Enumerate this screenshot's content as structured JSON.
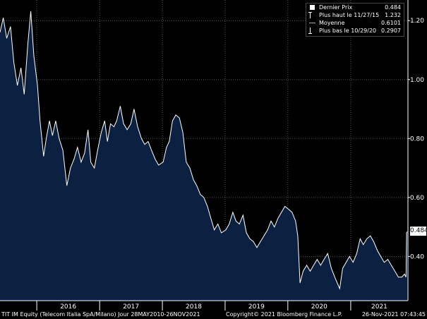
{
  "chart_data": {
    "type": "area",
    "ylim": [
      0.25,
      1.27
    ],
    "y_ticks": [
      0.4,
      0.6,
      0.8,
      1.0,
      1.2
    ],
    "y_tick_labels": [
      "0.40",
      "0.60",
      "0.80",
      "1.00",
      "1.20"
    ],
    "x_labels": [
      "2016",
      "2017",
      "2018",
      "2019",
      "2020",
      "2021"
    ],
    "grid": true,
    "series": [
      {
        "points": [
          [
            "2015-06-01",
            1.16
          ],
          [
            "2015-06-20",
            1.21
          ],
          [
            "2015-07-10",
            1.14
          ],
          [
            "2015-08-01",
            1.18
          ],
          [
            "2015-08-20",
            1.06
          ],
          [
            "2015-09-10",
            0.98
          ],
          [
            "2015-10-01",
            1.04
          ],
          [
            "2015-10-20",
            0.95
          ],
          [
            "2015-11-10",
            1.12
          ],
          [
            "2015-11-27",
            1.232
          ],
          [
            "2015-12-15",
            1.08
          ],
          [
            "2016-01-05",
            0.98
          ],
          [
            "2016-01-20",
            0.86
          ],
          [
            "2016-02-10",
            0.74
          ],
          [
            "2016-02-25",
            0.8
          ],
          [
            "2016-03-15",
            0.86
          ],
          [
            "2016-04-01",
            0.81
          ],
          [
            "2016-04-20",
            0.86
          ],
          [
            "2016-05-10",
            0.8
          ],
          [
            "2016-06-01",
            0.76
          ],
          [
            "2016-06-24",
            0.64
          ],
          [
            "2016-07-15",
            0.7
          ],
          [
            "2016-08-05",
            0.73
          ],
          [
            "2016-08-25",
            0.77
          ],
          [
            "2016-09-15",
            0.72
          ],
          [
            "2016-10-05",
            0.75
          ],
          [
            "2016-10-25",
            0.83
          ],
          [
            "2016-11-10",
            0.72
          ],
          [
            "2016-12-01",
            0.7
          ],
          [
            "2016-12-20",
            0.76
          ],
          [
            "2017-01-10",
            0.82
          ],
          [
            "2017-01-30",
            0.86
          ],
          [
            "2017-02-15",
            0.79
          ],
          [
            "2017-03-05",
            0.85
          ],
          [
            "2017-03-25",
            0.84
          ],
          [
            "2017-04-10",
            0.86
          ],
          [
            "2017-05-01",
            0.91
          ],
          [
            "2017-05-20",
            0.85
          ],
          [
            "2017-06-10",
            0.83
          ],
          [
            "2017-07-01",
            0.85
          ],
          [
            "2017-07-20",
            0.9
          ],
          [
            "2017-08-10",
            0.84
          ],
          [
            "2017-09-01",
            0.8
          ],
          [
            "2017-09-20",
            0.78
          ],
          [
            "2017-10-10",
            0.79
          ],
          [
            "2017-10-30",
            0.76
          ],
          [
            "2017-11-20",
            0.73
          ],
          [
            "2017-12-10",
            0.71
          ],
          [
            "2018-01-05",
            0.72
          ],
          [
            "2018-01-25",
            0.77
          ],
          [
            "2018-02-10",
            0.79
          ],
          [
            "2018-03-01",
            0.86
          ],
          [
            "2018-03-20",
            0.88
          ],
          [
            "2018-04-10",
            0.87
          ],
          [
            "2018-04-30",
            0.82
          ],
          [
            "2018-05-20",
            0.72
          ],
          [
            "2018-06-10",
            0.7
          ],
          [
            "2018-07-01",
            0.66
          ],
          [
            "2018-07-20",
            0.64
          ],
          [
            "2018-08-10",
            0.61
          ],
          [
            "2018-08-30",
            0.6
          ],
          [
            "2018-09-20",
            0.57
          ],
          [
            "2018-10-10",
            0.53
          ],
          [
            "2018-10-30",
            0.49
          ],
          [
            "2018-11-20",
            0.51
          ],
          [
            "2018-12-10",
            0.48
          ],
          [
            "2019-01-05",
            0.49
          ],
          [
            "2019-01-25",
            0.51
          ],
          [
            "2019-02-15",
            0.55
          ],
          [
            "2019-03-05",
            0.52
          ],
          [
            "2019-03-25",
            0.51
          ],
          [
            "2019-04-15",
            0.54
          ],
          [
            "2019-05-05",
            0.48
          ],
          [
            "2019-05-25",
            0.46
          ],
          [
            "2019-06-15",
            0.45
          ],
          [
            "2019-07-05",
            0.43
          ],
          [
            "2019-07-25",
            0.45
          ],
          [
            "2019-08-15",
            0.47
          ],
          [
            "2019-09-05",
            0.49
          ],
          [
            "2019-09-25",
            0.52
          ],
          [
            "2019-10-15",
            0.5
          ],
          [
            "2019-11-05",
            0.53
          ],
          [
            "2019-11-25",
            0.55
          ],
          [
            "2019-12-15",
            0.57
          ],
          [
            "2020-01-05",
            0.56
          ],
          [
            "2020-01-25",
            0.55
          ],
          [
            "2020-02-15",
            0.52
          ],
          [
            "2020-02-28",
            0.47
          ],
          [
            "2020-03-12",
            0.31
          ],
          [
            "2020-03-30",
            0.35
          ],
          [
            "2020-04-20",
            0.37
          ],
          [
            "2020-05-10",
            0.35
          ],
          [
            "2020-05-30",
            0.37
          ],
          [
            "2020-06-20",
            0.39
          ],
          [
            "2020-07-10",
            0.37
          ],
          [
            "2020-07-30",
            0.39
          ],
          [
            "2020-08-20",
            0.41
          ],
          [
            "2020-09-10",
            0.36
          ],
          [
            "2020-09-30",
            0.33
          ],
          [
            "2020-10-29",
            0.2907
          ],
          [
            "2020-11-15",
            0.36
          ],
          [
            "2020-12-05",
            0.38
          ],
          [
            "2020-12-25",
            0.4
          ],
          [
            "2021-01-15",
            0.38
          ],
          [
            "2021-02-05",
            0.41
          ],
          [
            "2021-02-25",
            0.46
          ],
          [
            "2021-03-15",
            0.44
          ],
          [
            "2021-04-05",
            0.46
          ],
          [
            "2021-04-25",
            0.47
          ],
          [
            "2021-05-15",
            0.45
          ],
          [
            "2021-06-05",
            0.42
          ],
          [
            "2021-06-25",
            0.4
          ],
          [
            "2021-07-15",
            0.38
          ],
          [
            "2021-08-05",
            0.39
          ],
          [
            "2021-08-25",
            0.37
          ],
          [
            "2021-09-15",
            0.35
          ],
          [
            "2021-10-05",
            0.33
          ],
          [
            "2021-10-25",
            0.33
          ],
          [
            "2021-11-10",
            0.34
          ],
          [
            "2021-11-19",
            0.33
          ],
          [
            "2021-11-22",
            0.48
          ],
          [
            "2021-11-26",
            0.484
          ]
        ]
      }
    ],
    "colors": {
      "area_fill": "#0c2142",
      "line": "#ffffff",
      "grid": "#555555",
      "background": "#000000"
    }
  },
  "legend": {
    "rows": [
      {
        "icon": "square-icon",
        "label": "Dernier Prix",
        "value": "0.484"
      },
      {
        "icon": "high-marker-icon",
        "label": "Plus haut le 11/27/15",
        "value": "1.232"
      },
      {
        "icon": "average-line-icon",
        "label": "Moyenne",
        "value": "0.6101"
      },
      {
        "icon": "low-marker-icon",
        "label": "Plus bas le 10/29/20",
        "value": "0.2907"
      }
    ]
  },
  "last_price_label": "0.484",
  "footer": {
    "security": "TIT IM Equity (Telecom Italia SpA/Milano)  Jour 28MAY2010-26NOV2021",
    "copyright": "Copyright© 2021 Bloomberg Finance L.P.",
    "timestamp": "26-Nov-2021 07:43:45"
  }
}
